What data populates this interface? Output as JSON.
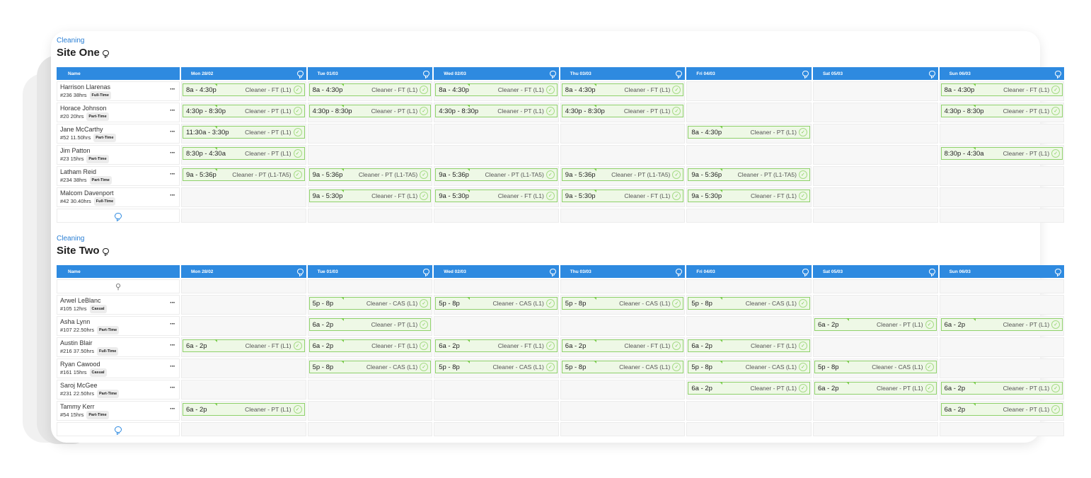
{
  "sections": [
    {
      "category": "Cleaning",
      "title": "Site One",
      "name_header": "Name",
      "days": [
        "Mon 28/02",
        "Tue 01/03",
        "Wed 02/03",
        "Thu 03/03",
        "Fri 04/03",
        "Sat 05/03",
        "Sun 06/03"
      ],
      "rows": [
        {
          "name": "Harrison Llarenas",
          "meta": "#236 38hrs",
          "badge": "Full-Time",
          "shifts": [
            {
              "time": "8a - 4:30p",
              "role": "Cleaner - FT (L1)"
            },
            {
              "time": "8a - 4:30p",
              "role": "Cleaner - FT (L1)"
            },
            {
              "time": "8a - 4:30p",
              "role": "Cleaner - FT (L1)"
            },
            {
              "time": "8a - 4:30p",
              "role": "Cleaner - FT (L1)"
            },
            null,
            null,
            {
              "time": "8a - 4:30p",
              "role": "Cleaner - FT (L1)"
            }
          ]
        },
        {
          "name": "Horace Johnson",
          "meta": "#20 20hrs",
          "badge": "Part-Time",
          "shifts": [
            {
              "time": "4:30p - 8:30p",
              "role": "Cleaner - PT (L1)"
            },
            {
              "time": "4:30p - 8:30p",
              "role": "Cleaner - PT (L1)"
            },
            {
              "time": "4:30p - 8:30p",
              "role": "Cleaner - PT (L1)"
            },
            {
              "time": "4:30p - 8:30p",
              "role": "Cleaner - PT (L1)"
            },
            null,
            null,
            {
              "time": "4:30p - 8:30p",
              "role": "Cleaner - PT (L1)"
            }
          ]
        },
        {
          "name": "Jane McCarthy",
          "meta": "#52 11.50hrs",
          "badge": "Part-Time",
          "shifts": [
            {
              "time": "11:30a - 3:30p",
              "role": "Cleaner - PT (L1)"
            },
            null,
            null,
            null,
            {
              "time": "8a - 4:30p",
              "role": "Cleaner - PT (L1)"
            },
            null,
            null
          ]
        },
        {
          "name": "Jim Patton",
          "meta": "#23 15hrs",
          "badge": "Part-Time",
          "shifts": [
            {
              "time": "8:30p - 4:30a",
              "role": "Cleaner - PT (L1)"
            },
            null,
            null,
            null,
            null,
            null,
            {
              "time": "8:30p - 4:30a",
              "role": "Cleaner - PT (L1)"
            }
          ]
        },
        {
          "name": "Latham Reid",
          "meta": "#234 38hrs",
          "badge": "Part-Time",
          "shifts": [
            {
              "time": "9a - 5:36p",
              "role": "Cleaner - PT (L1-TA5)"
            },
            {
              "time": "9a - 5:36p",
              "role": "Cleaner - PT (L1-TA5)"
            },
            {
              "time": "9a - 5:36p",
              "role": "Cleaner - PT (L1-TA5)"
            },
            {
              "time": "9a - 5:36p",
              "role": "Cleaner - PT (L1-TA5)"
            },
            {
              "time": "9a - 5:36p",
              "role": "Cleaner - PT (L1-TA5)"
            },
            null,
            null
          ]
        },
        {
          "name": "Malcom Davenport",
          "meta": "#42 30.40hrs",
          "badge": "Full-Time",
          "shifts": [
            null,
            {
              "time": "9a - 5:30p",
              "role": "Cleaner - FT (L1)"
            },
            {
              "time": "9a - 5:30p",
              "role": "Cleaner - FT (L1)"
            },
            {
              "time": "9a - 5:30p",
              "role": "Cleaner - FT (L1)"
            },
            {
              "time": "9a - 5:30p",
              "role": "Cleaner - FT (L1)"
            },
            null,
            null
          ]
        }
      ]
    },
    {
      "category": "Cleaning",
      "title": "Site Two",
      "name_header": "Name",
      "days": [
        "Mon 28/02",
        "Tue 01/03",
        "Wed 02/03",
        "Thu 03/03",
        "Fri 04/03",
        "Sat 05/03",
        "Sun 06/03"
      ],
      "rows": [
        {
          "name": "Arwel LeBlanc",
          "meta": "#105 12hrs",
          "badge": "Casual",
          "shifts": [
            null,
            {
              "time": "5p - 8p",
              "role": "Cleaner - CAS (L1)"
            },
            {
              "time": "5p - 8p",
              "role": "Cleaner - CAS (L1)"
            },
            {
              "time": "5p - 8p",
              "role": "Cleaner - CAS (L1)"
            },
            {
              "time": "5p - 8p",
              "role": "Cleaner - CAS (L1)"
            },
            null,
            null
          ]
        },
        {
          "name": "Asha Lynn",
          "meta": "#107 22.50hrs",
          "badge": "Part-Time",
          "shifts": [
            null,
            {
              "time": "6a - 2p",
              "role": "Cleaner - PT (L1)"
            },
            null,
            null,
            null,
            {
              "time": "6a - 2p",
              "role": "Cleaner - PT (L1)"
            },
            {
              "time": "6a - 2p",
              "role": "Cleaner - PT (L1)"
            }
          ]
        },
        {
          "name": "Austin Blair",
          "meta": "#216 37.50hrs",
          "badge": "Full-Time",
          "shifts": [
            {
              "time": "6a - 2p",
              "role": "Cleaner - FT (L1)"
            },
            {
              "time": "6a - 2p",
              "role": "Cleaner - FT (L1)"
            },
            {
              "time": "6a - 2p",
              "role": "Cleaner - FT (L1)"
            },
            {
              "time": "6a - 2p",
              "role": "Cleaner - FT (L1)"
            },
            {
              "time": "6a - 2p",
              "role": "Cleaner - FT (L1)"
            },
            null,
            null
          ]
        },
        {
          "name": "Ryan Cawood",
          "meta": "#161 15hrs",
          "badge": "Casual",
          "shifts": [
            null,
            {
              "time": "5p - 8p",
              "role": "Cleaner - CAS (L1)"
            },
            {
              "time": "5p - 8p",
              "role": "Cleaner - CAS (L1)"
            },
            {
              "time": "5p - 8p",
              "role": "Cleaner - CAS (L1)"
            },
            {
              "time": "5p - 8p",
              "role": "Cleaner - CAS (L1)"
            },
            {
              "time": "5p - 8p",
              "role": "Cleaner - CAS (L1)"
            },
            null
          ]
        },
        {
          "name": "Saroj McGee",
          "meta": "#231 22.50hrs",
          "badge": "Part-Time",
          "shifts": [
            null,
            null,
            null,
            null,
            {
              "time": "6a - 2p",
              "role": "Cleaner - PT (L1)"
            },
            {
              "time": "6a - 2p",
              "role": "Cleaner - PT (L1)"
            },
            {
              "time": "6a - 2p",
              "role": "Cleaner - PT (L1)"
            }
          ]
        },
        {
          "name": "Tammy Kerr",
          "meta": "#54 15hrs",
          "badge": "Part-Time",
          "shifts": [
            {
              "time": "6a - 2p",
              "role": "Cleaner - PT (L1)"
            },
            null,
            null,
            null,
            null,
            null,
            {
              "time": "6a - 2p",
              "role": "Cleaner - PT (L1)"
            }
          ]
        }
      ]
    }
  ],
  "more_label": "···",
  "icons": {
    "chat": "chat-bubble-icon",
    "add": "add-chat-icon",
    "person": "person-add-icon",
    "check": "check-circle-icon"
  },
  "colors": {
    "header": "#2e8ae0",
    "shift_bg": "#eef8e6",
    "shift_border": "#8fd16b",
    "link": "#2a7fd4"
  }
}
